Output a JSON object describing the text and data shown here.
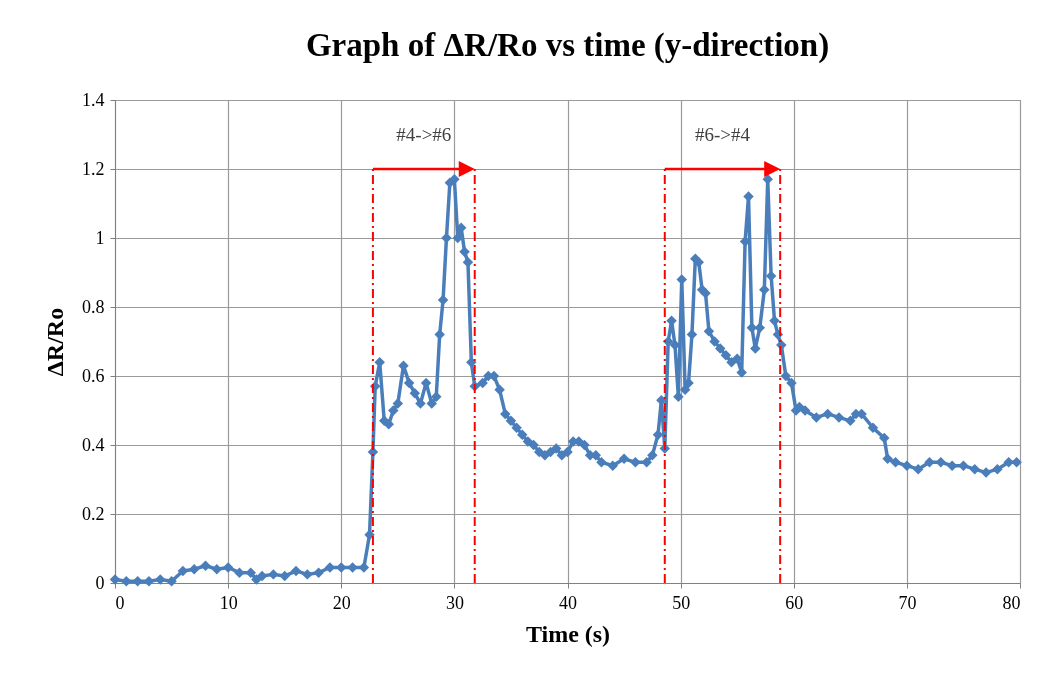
{
  "chart_data": {
    "type": "line",
    "title": "Graph of ΔR/Ro vs time (y-direction)",
    "xlabel": "Time (s)",
    "ylabel": "ΔR/Ro",
    "xlim": [
      0,
      80
    ],
    "xticks": [
      0,
      10,
      20,
      30,
      40,
      50,
      60,
      70,
      80
    ],
    "ylim": [
      0,
      1.4
    ],
    "yticks": [
      0,
      0.2,
      0.4,
      0.6,
      0.8,
      1,
      1.2,
      1.4
    ],
    "grid": true,
    "marker": "diamond",
    "line_style": "solid",
    "series": [
      {
        "color": "#4a7ebb",
        "x": [
          0,
          1,
          2,
          3,
          4,
          5,
          6,
          7,
          8,
          9,
          10,
          11,
          12,
          12.5,
          13,
          14,
          15,
          16,
          17,
          18,
          19,
          20,
          21,
          22,
          22.5,
          22.8,
          23,
          23.4,
          23.8,
          24.2,
          24.6,
          25,
          25.5,
          26,
          26.5,
          27,
          27.5,
          28,
          28.4,
          28.7,
          29,
          29.3,
          29.6,
          30,
          30.3,
          30.6,
          30.9,
          31.2,
          31.5,
          31.8,
          32.5,
          33,
          33.5,
          34,
          34.5,
          35,
          35.5,
          36,
          36.5,
          37,
          37.5,
          38,
          38.5,
          39,
          39.5,
          40,
          40.5,
          41,
          41.5,
          42,
          42.5,
          43,
          44,
          45,
          46,
          47,
          47.5,
          48,
          48.3,
          48.6,
          48.9,
          49.2,
          49.5,
          49.8,
          50.1,
          50.4,
          50.7,
          51,
          51.3,
          51.6,
          51.9,
          52.2,
          52.5,
          53,
          53.5,
          54,
          54.5,
          55,
          55.4,
          55.7,
          56,
          56.3,
          56.6,
          57,
          57.4,
          57.7,
          58,
          58.3,
          58.6,
          58.9,
          59.3,
          59.8,
          60.2,
          60.5,
          61,
          62,
          63,
          64,
          65,
          65.5,
          66,
          67,
          68,
          68.3,
          69,
          70,
          71,
          72,
          73,
          74,
          75,
          76,
          77,
          78,
          79,
          79.7
        ],
        "values": [
          0.01,
          0.005,
          0.005,
          0.005,
          0.01,
          0.005,
          0.035,
          0.04,
          0.05,
          0.04,
          0.045,
          0.03,
          0.03,
          0.01,
          0.02,
          0.025,
          0.02,
          0.035,
          0.025,
          0.03,
          0.045,
          0.045,
          0.045,
          0.045,
          0.14,
          0.38,
          0.57,
          0.64,
          0.47,
          0.46,
          0.5,
          0.52,
          0.63,
          0.58,
          0.55,
          0.52,
          0.58,
          0.52,
          0.54,
          0.72,
          0.82,
          1.0,
          1.16,
          1.17,
          1.0,
          1.03,
          0.96,
          0.93,
          0.64,
          0.57,
          0.58,
          0.6,
          0.6,
          0.56,
          0.49,
          0.47,
          0.45,
          0.43,
          0.41,
          0.4,
          0.38,
          0.37,
          0.38,
          0.39,
          0.37,
          0.38,
          0.41,
          0.41,
          0.4,
          0.37,
          0.37,
          0.35,
          0.34,
          0.36,
          0.35,
          0.35,
          0.37,
          0.43,
          0.53,
          0.39,
          0.7,
          0.76,
          0.69,
          0.54,
          0.88,
          0.56,
          0.58,
          0.72,
          0.94,
          0.93,
          0.85,
          0.84,
          0.73,
          0.7,
          0.68,
          0.66,
          0.64,
          0.65,
          0.61,
          0.99,
          1.12,
          0.74,
          0.68,
          0.74,
          0.85,
          1.17,
          0.89,
          0.76,
          0.72,
          0.69,
          0.6,
          0.58,
          0.5,
          0.51,
          0.5,
          0.48,
          0.49,
          0.48,
          0.47,
          0.49,
          0.49,
          0.45,
          0.42,
          0.36,
          0.35,
          0.34,
          0.33,
          0.35,
          0.35,
          0.34,
          0.34,
          0.33,
          0.32,
          0.33,
          0.35,
          0.35
        ]
      }
    ],
    "ref_lines": [
      {
        "axis": "x",
        "value": 22.8,
        "color": "#ff0000",
        "line_style": "dashed"
      },
      {
        "axis": "x",
        "value": 31.8,
        "color": "#ff0000",
        "line_style": "dashed"
      },
      {
        "axis": "x",
        "value": 48.6,
        "color": "#ff0000",
        "line_style": "dashed"
      },
      {
        "axis": "x",
        "value": 58.8,
        "color": "#ff0000",
        "line_style": "dashed"
      }
    ],
    "annotations": [
      "#4->#6",
      "#6->#4"
    ]
  }
}
